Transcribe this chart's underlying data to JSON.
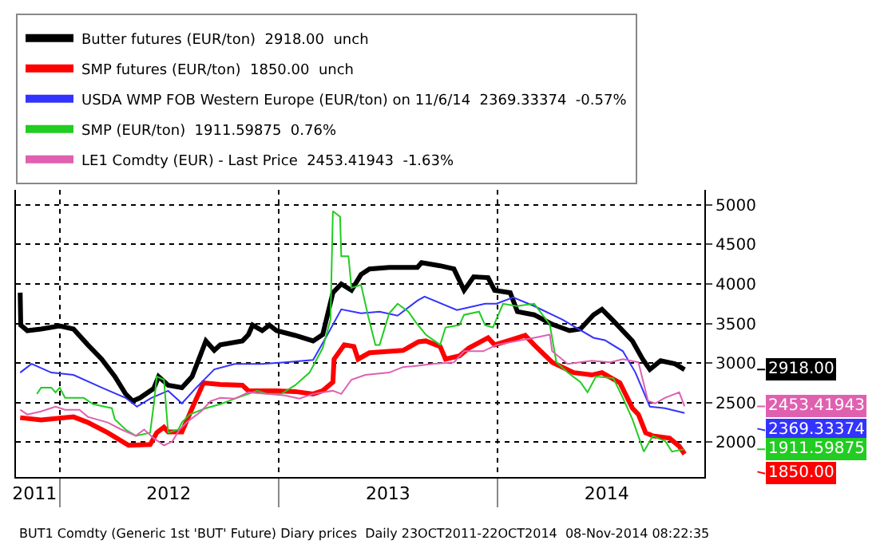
{
  "chart_data": {
    "type": "line",
    "xlim": [
      "2011-10-20",
      "2014-12-12"
    ],
    "xticks": [
      {
        "value": "2011-11-20",
        "label": "2011"
      },
      {
        "value": "2012-01-01",
        "label": null
      },
      {
        "value": "2012-07-01",
        "label": "2012"
      },
      {
        "value": "2013-01-01",
        "label": null
      },
      {
        "value": "2013-07-02",
        "label": "2013"
      },
      {
        "value": "2014-01-01",
        "label": null
      },
      {
        "value": "2014-07-02",
        "label": "2014"
      }
    ],
    "ylim": [
      1560,
      5190
    ],
    "yticks": [
      2000,
      2500,
      3000,
      3500,
      4000,
      4500,
      5000
    ],
    "grid": true,
    "legend": "top",
    "line_style": "solid",
    "marker": "none",
    "series": [
      {
        "name": "Butter futures (EUR/ton)  2918.00  unch",
        "color": "#000000",
        "x": [
          "2011-10-27",
          "2011-10-28",
          "2011-11-08",
          "2011-12-01",
          "2012-01-01",
          "2012-01-24",
          "2012-02-17",
          "2012-03-11",
          "2012-04-02",
          "2012-04-20",
          "2012-05-02",
          "2012-05-14",
          "2012-06-06",
          "2012-06-14",
          "2012-06-30",
          "2012-07-23",
          "2012-08-09",
          "2012-09-01",
          "2012-09-15",
          "2012-09-25",
          "2012-11-01",
          "2012-11-11",
          "2012-11-18",
          "2012-12-04",
          "2012-12-16",
          "2012-12-28",
          "2013-01-28",
          "2013-02-27",
          "2013-03-15",
          "2013-04-01",
          "2013-04-15",
          "2013-05-02",
          "2013-05-18",
          "2013-06-01",
          "2013-07-04",
          "2013-08-20",
          "2013-08-27",
          "2013-09-27",
          "2013-10-20",
          "2013-11-06",
          "2013-11-22",
          "2013-12-16",
          "2013-12-27",
          "2014-01-22",
          "2014-02-03",
          "2014-03-03",
          "2014-04-02",
          "2014-05-01",
          "2014-05-19",
          "2014-06-10",
          "2014-06-24",
          "2014-07-15",
          "2014-08-14",
          "2014-08-31",
          "2014-09-12",
          "2014-09-30",
          "2014-10-24",
          "2014-11-09"
        ],
        "values": [
          3890,
          3480,
          3410,
          3430,
          3470,
          3430,
          3230,
          3050,
          2830,
          2610,
          2520,
          2560,
          2680,
          2830,
          2720,
          2690,
          2830,
          3280,
          3160,
          3230,
          3280,
          3360,
          3480,
          3410,
          3480,
          3410,
          3350,
          3280,
          3360,
          3890,
          4000,
          3920,
          4120,
          4190,
          4210,
          4210,
          4270,
          4230,
          4190,
          3920,
          4090,
          4080,
          3920,
          3890,
          3650,
          3610,
          3490,
          3410,
          3430,
          3610,
          3680,
          3520,
          3280,
          3050,
          2920,
          3030,
          2990,
          2918
        ]
      },
      {
        "name": "SMP futures (EUR/ton)  1850.00  unch",
        "color": "#ff0000",
        "x": [
          "2011-10-27",
          "2011-12-01",
          "2012-01-24",
          "2012-02-17",
          "2012-03-21",
          "2012-04-25",
          "2012-05-31",
          "2012-06-11",
          "2012-06-23",
          "2012-06-30",
          "2012-07-23",
          "2012-08-09",
          "2012-08-28",
          "2012-09-25",
          "2012-11-01",
          "2012-11-11",
          "2012-12-28",
          "2013-01-28",
          "2013-02-27",
          "2013-03-15",
          "2013-04-01",
          "2013-04-03",
          "2013-04-20",
          "2013-05-06",
          "2013-05-13",
          "2013-06-01",
          "2013-07-27",
          "2013-08-22",
          "2013-09-03",
          "2013-09-27",
          "2013-10-06",
          "2013-10-29",
          "2013-11-14",
          "2013-12-16",
          "2013-12-27",
          "2014-01-22",
          "2014-02-16",
          "2014-03-03",
          "2014-04-02",
          "2014-05-08",
          "2014-06-07",
          "2014-06-24",
          "2014-07-24",
          "2014-08-14",
          "2014-08-24",
          "2014-09-05",
          "2014-09-17",
          "2014-10-15",
          "2014-10-31",
          "2014-11-09"
        ],
        "values": [
          2310,
          2280,
          2320,
          2250,
          2120,
          1960,
          1970,
          2120,
          2190,
          2130,
          2130,
          2430,
          2750,
          2730,
          2720,
          2650,
          2650,
          2640,
          2610,
          2650,
          2760,
          3050,
          3230,
          3210,
          3050,
          3130,
          3160,
          3270,
          3280,
          3210,
          3050,
          3090,
          3190,
          3320,
          3230,
          3290,
          3350,
          3230,
          3010,
          2880,
          2850,
          2880,
          2750,
          2430,
          2350,
          2120,
          2080,
          2050,
          1950,
          1850
        ]
      },
      {
        "name": "USDA WMP FOB Western Europe (EUR/ton) on 11/6/14  2369.33374  -0.57%",
        "color": "#3333ff",
        "x": [
          "2011-10-27",
          "2011-11-15",
          "2011-12-18",
          "2012-01-24",
          "2012-03-11",
          "2012-04-20",
          "2012-05-09",
          "2012-06-02",
          "2012-06-30",
          "2012-07-23",
          "2012-08-16",
          "2012-09-15",
          "2012-10-19",
          "2012-12-04",
          "2013-01-11",
          "2013-02-27",
          "2013-03-20",
          "2013-04-15",
          "2013-05-18",
          "2013-06-18",
          "2013-07-18",
          "2013-08-20",
          "2013-09-01",
          "2013-10-25",
          "2013-12-11",
          "2013-12-30",
          "2014-01-27",
          "2014-03-03",
          "2014-04-19",
          "2014-06-10",
          "2014-06-29",
          "2014-07-29",
          "2014-08-19",
          "2014-09-12",
          "2014-10-07",
          "2014-11-09"
        ],
        "values": [
          2880,
          2990,
          2880,
          2850,
          2690,
          2560,
          2450,
          2560,
          2650,
          2490,
          2690,
          2920,
          2990,
          2990,
          3010,
          3040,
          3320,
          3680,
          3630,
          3650,
          3600,
          3790,
          3840,
          3670,
          3750,
          3750,
          3830,
          3720,
          3550,
          3320,
          3290,
          3150,
          2880,
          2450,
          2430,
          2369.33374
        ]
      },
      {
        "name": "SMP (EUR/ton)  1911.59875  0.76%",
        "color": "#22cc22",
        "x": [
          "2011-11-24",
          "2011-12-01",
          "2011-12-18",
          "2011-12-25",
          "2012-01-01",
          "2012-01-10",
          "2012-02-10",
          "2012-02-26",
          "2012-03-28",
          "2012-04-02",
          "2012-04-20",
          "2012-05-07",
          "2012-05-31",
          "2012-06-06",
          "2012-06-11",
          "2012-06-23",
          "2012-06-30",
          "2012-07-17",
          "2012-07-23",
          "2012-08-05",
          "2012-09-01",
          "2012-09-25",
          "2012-10-19",
          "2012-11-26",
          "2012-12-12",
          "2013-01-05",
          "2013-01-28",
          "2013-02-21",
          "2013-03-15",
          "2013-03-28",
          "2013-04-01",
          "2013-04-13",
          "2013-04-15",
          "2013-04-27",
          "2013-05-02",
          "2013-05-18",
          "2013-05-30",
          "2013-06-11",
          "2013-06-18",
          "2013-07-04",
          "2013-07-18",
          "2013-08-05",
          "2013-08-17",
          "2013-09-03",
          "2013-09-27",
          "2013-10-06",
          "2013-10-29",
          "2013-11-06",
          "2013-12-01",
          "2013-12-11",
          "2013-12-24",
          "2014-01-10",
          "2014-02-02",
          "2014-03-03",
          "2014-03-29",
          "2014-04-09",
          "2014-04-28",
          "2014-05-19",
          "2014-05-31",
          "2014-06-14",
          "2014-07-13",
          "2014-07-29",
          "2014-08-14",
          "2014-09-02",
          "2014-09-17",
          "2014-10-08",
          "2014-10-19",
          "2014-11-09"
        ],
        "values": [
          2610,
          2690,
          2690,
          2630,
          2690,
          2560,
          2560,
          2480,
          2430,
          2290,
          2160,
          2080,
          2120,
          2480,
          2830,
          2790,
          2120,
          2160,
          2250,
          2350,
          2430,
          2480,
          2550,
          2650,
          2610,
          2610,
          2720,
          2880,
          3190,
          3550,
          4920,
          4850,
          4350,
          4350,
          3950,
          3990,
          3590,
          3230,
          3230,
          3630,
          3750,
          3650,
          3520,
          3360,
          3230,
          3450,
          3480,
          3610,
          3650,
          3480,
          3450,
          3750,
          3720,
          3750,
          3490,
          3010,
          2880,
          2760,
          2630,
          2830,
          2810,
          2560,
          2290,
          1880,
          2080,
          2010,
          1880,
          1911.59875
        ]
      },
      {
        "name": "LE1 Comdty (EUR) - Last Price  2453.41943  -1.63%",
        "color": "#e060b0",
        "x": [
          "2011-10-27",
          "2011-11-08",
          "2011-12-01",
          "2011-12-25",
          "2012-01-10",
          "2012-02-03",
          "2012-02-17",
          "2012-03-21",
          "2012-04-13",
          "2012-05-07",
          "2012-05-21",
          "2012-06-06",
          "2012-06-23",
          "2012-07-07",
          "2012-07-19",
          "2012-07-31",
          "2012-08-24",
          "2012-09-09",
          "2012-09-25",
          "2012-10-19",
          "2012-11-11",
          "2012-12-12",
          "2013-01-11",
          "2013-02-04",
          "2013-02-27",
          "2013-04-01",
          "2013-04-15",
          "2013-05-02",
          "2013-05-25",
          "2013-07-04",
          "2013-07-27",
          "2013-08-12",
          "2013-09-14",
          "2013-10-20",
          "2013-11-06",
          "2013-12-08",
          "2013-12-30",
          "2014-02-02",
          "2014-03-03",
          "2014-03-29",
          "2014-04-02",
          "2014-04-28",
          "2014-06-07",
          "2014-07-08",
          "2014-07-29",
          "2014-08-24",
          "2014-09-09",
          "2014-09-21",
          "2014-10-07",
          "2014-10-31",
          "2014-11-09"
        ],
        "values": [
          2410,
          2350,
          2390,
          2450,
          2410,
          2410,
          2320,
          2250,
          2160,
          2080,
          2160,
          2050,
          1960,
          2010,
          2160,
          2250,
          2390,
          2520,
          2560,
          2550,
          2630,
          2610,
          2590,
          2550,
          2610,
          2650,
          2610,
          2790,
          2850,
          2880,
          2950,
          2960,
          2990,
          3010,
          3150,
          3150,
          3230,
          3280,
          3320,
          3360,
          3150,
          2990,
          3030,
          3010,
          3050,
          3010,
          2520,
          2490,
          2560,
          2630,
          2453.41943
        ]
      }
    ],
    "annotations": [
      {
        "text": "2918.00",
        "x": "2014-11-09",
        "y": 2918
      },
      {
        "text": "2453.41943",
        "x": "2014-11-09",
        "y": 2453.41943
      },
      {
        "text": "2369.33374",
        "x": "2014-11-09",
        "y": 2369.33374
      },
      {
        "text": "1911.59875",
        "x": "2014-11-09",
        "y": 1911.59875
      },
      {
        "text": "1850.00",
        "x": "2014-11-09",
        "y": 1850
      },
      "BUT1 Comdty (Generic 1st 'BUT' Future) Diary prices  Daily 23OCT2011-22OCT2014  08-Nov-2014 08:22:35"
    ]
  }
}
